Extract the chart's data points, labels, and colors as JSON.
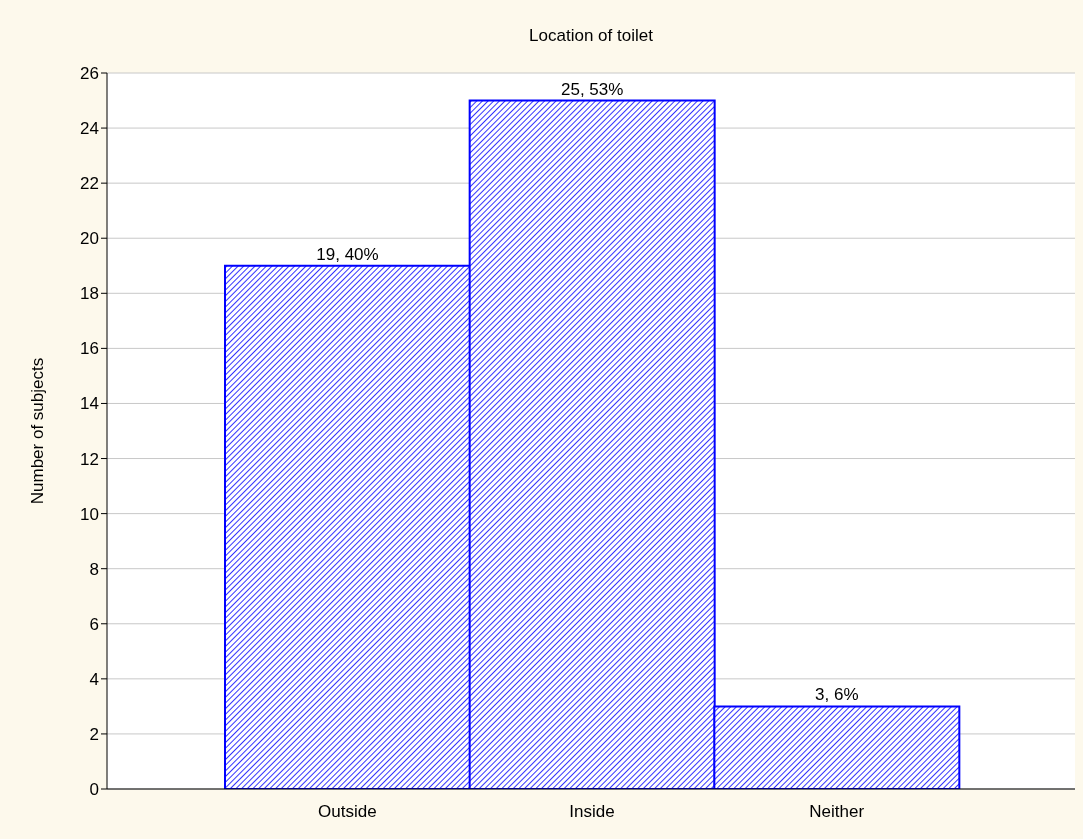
{
  "chart_data": {
    "type": "bar",
    "title": "Location of toilet",
    "ylabel": "Number of subjects",
    "categories": [
      "Outside",
      "Inside",
      "Neither"
    ],
    "values": [
      19,
      25,
      3
    ],
    "value_labels": [
      "19, 40%",
      "25, 53%",
      "3, 6%"
    ],
    "color": "#0000ff",
    "ylim": [
      0,
      26
    ],
    "yticks": [
      0,
      2,
      4,
      6,
      8,
      10,
      12,
      14,
      16,
      18,
      20,
      22,
      24,
      26
    ],
    "grid": "y",
    "legend": false
  }
}
